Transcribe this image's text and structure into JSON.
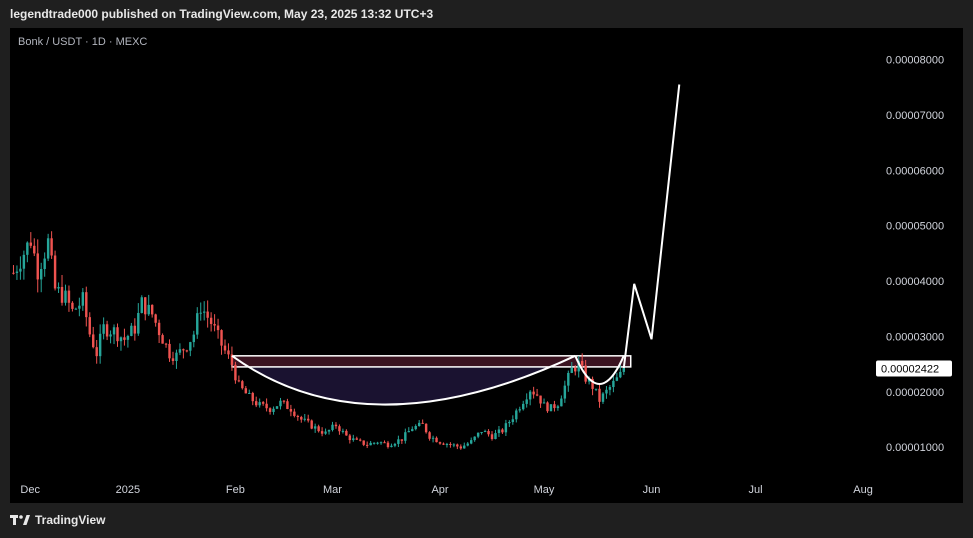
{
  "header": {
    "published_line": "legendtrade000 published on TradingView.com, May 23, 2025 13:32 UTC+3"
  },
  "legend": {
    "symbol_line": "Bonk / USDT · 1D · MEXC"
  },
  "footer": {
    "brand_icon": "tradingview-logo-icon",
    "brand_label": "TradingView"
  },
  "chart_data": {
    "type": "candlestick",
    "symbol": "Bonk / USDT",
    "interval": "1D",
    "exchange": "MEXC",
    "y_ticks": [
      1e-05,
      2e-05,
      3e-05,
      4e-05,
      5e-05,
      6e-05,
      7e-05,
      8e-05
    ],
    "y_tick_labels": [
      "0.00001000",
      "0.00002000",
      "0.00003000",
      "0.00004000",
      "0.00005000",
      "0.00006000",
      "0.00007000",
      "0.00008000"
    ],
    "ylim": [
      4.8e-06,
      8.57e-05
    ],
    "x_tick_labels": [
      {
        "label": "Dec",
        "day": 0
      },
      {
        "label": "2025",
        "day": 31
      },
      {
        "label": "Feb",
        "day": 62
      },
      {
        "label": "Mar",
        "day": 90
      },
      {
        "label": "Apr",
        "day": 121
      },
      {
        "label": "May",
        "day": 151
      },
      {
        "label": "Jun",
        "day": 182
      },
      {
        "label": "Jul",
        "day": 212
      },
      {
        "label": "Aug",
        "day": 243
      }
    ],
    "xlim_days": [
      -3,
      245
    ],
    "current_price": 2.422e-05,
    "current_price_label": "0.00002422",
    "colors": {
      "up": "#26a69a",
      "down": "#ef5350",
      "projection": "#ffffff",
      "cup_fill": "#1a1230",
      "resistance_fill": "#3a1320",
      "price_tag_bg": "#ffffff"
    },
    "price_path": [
      [
        -2,
        4.15e-05
      ],
      [
        3,
        4.75e-05
      ],
      [
        5,
        4.2e-05
      ],
      [
        8,
        4.7e-05
      ],
      [
        10,
        3.85e-05
      ],
      [
        13,
        3.7e-05
      ],
      [
        15,
        3.45e-05
      ],
      [
        18,
        3.65e-05
      ],
      [
        20,
        3.05e-05
      ],
      [
        22,
        2.7e-05
      ],
      [
        24,
        3.15e-05
      ],
      [
        27,
        3.1e-05
      ],
      [
        30,
        2.95e-05
      ],
      [
        33,
        3.15e-05
      ],
      [
        35,
        3.6e-05
      ],
      [
        38,
        3.4e-05
      ],
      [
        40,
        3.1e-05
      ],
      [
        43,
        2.7e-05
      ],
      [
        45,
        2.65e-05
      ],
      [
        48,
        2.85e-05
      ],
      [
        50,
        3.05e-05
      ],
      [
        52,
        3.55e-05
      ],
      [
        55,
        3.25e-05
      ],
      [
        58,
        2.85e-05
      ],
      [
        61,
        2.5e-05
      ],
      [
        63,
        2.1e-05
      ],
      [
        66,
        1.9e-05
      ],
      [
        69,
        1.75e-05
      ],
      [
        72,
        1.7e-05
      ],
      [
        75,
        1.8e-05
      ],
      [
        78,
        1.7e-05
      ],
      [
        81,
        1.5e-05
      ],
      [
        85,
        1.35e-05
      ],
      [
        88,
        1.25e-05
      ],
      [
        91,
        1.4e-05
      ],
      [
        94,
        1.2e-05
      ],
      [
        97,
        1.1e-05
      ],
      [
        100,
        1.05e-05
      ],
      [
        103,
        1.1e-05
      ],
      [
        106,
        1.05e-05
      ],
      [
        110,
        1.15e-05
      ],
      [
        113,
        1.35e-05
      ],
      [
        116,
        1.4e-05
      ],
      [
        118,
        1.2e-05
      ],
      [
        121,
        1.1e-05
      ],
      [
        124,
        1.05e-05
      ],
      [
        127,
        1e-05
      ],
      [
        130,
        1.1e-05
      ],
      [
        133,
        1.3e-05
      ],
      [
        136,
        1.2e-05
      ],
      [
        139,
        1.3e-05
      ],
      [
        142,
        1.55e-05
      ],
      [
        145,
        1.85e-05
      ],
      [
        147,
        2.05e-05
      ],
      [
        149,
        1.95e-05
      ],
      [
        151,
        1.75e-05
      ],
      [
        153,
        1.7e-05
      ],
      [
        155,
        1.8e-05
      ],
      [
        157,
        2.1e-05
      ],
      [
        159,
        2.4e-05
      ],
      [
        161,
        2.5e-05
      ],
      [
        163,
        2.25e-05
      ],
      [
        165,
        2.1e-05
      ],
      [
        167,
        1.85e-05
      ],
      [
        169,
        2e-05
      ],
      [
        171,
        2.15e-05
      ],
      [
        173,
        2.3e-05
      ],
      [
        174,
        2.43e-05
      ]
    ],
    "projection_path": [
      [
        174,
        2.43e-05
      ],
      [
        177,
        3.95e-05
      ],
      [
        182,
        2.95e-05
      ],
      [
        190,
        7.55e-05
      ]
    ],
    "resistance_zone": {
      "x": [
        61,
        176
      ],
      "y": [
        2.45e-05,
        2.65e-05
      ]
    },
    "cup_curve": [
      [
        61,
        2.65e-05
      ],
      [
        100,
        8.9e-06
      ],
      [
        160,
        2.65e-05
      ]
    ],
    "handle_curve": [
      [
        160,
        2.65e-05
      ],
      [
        167,
        1.85e-05
      ],
      [
        174,
        2.65e-05
      ]
    ]
  }
}
